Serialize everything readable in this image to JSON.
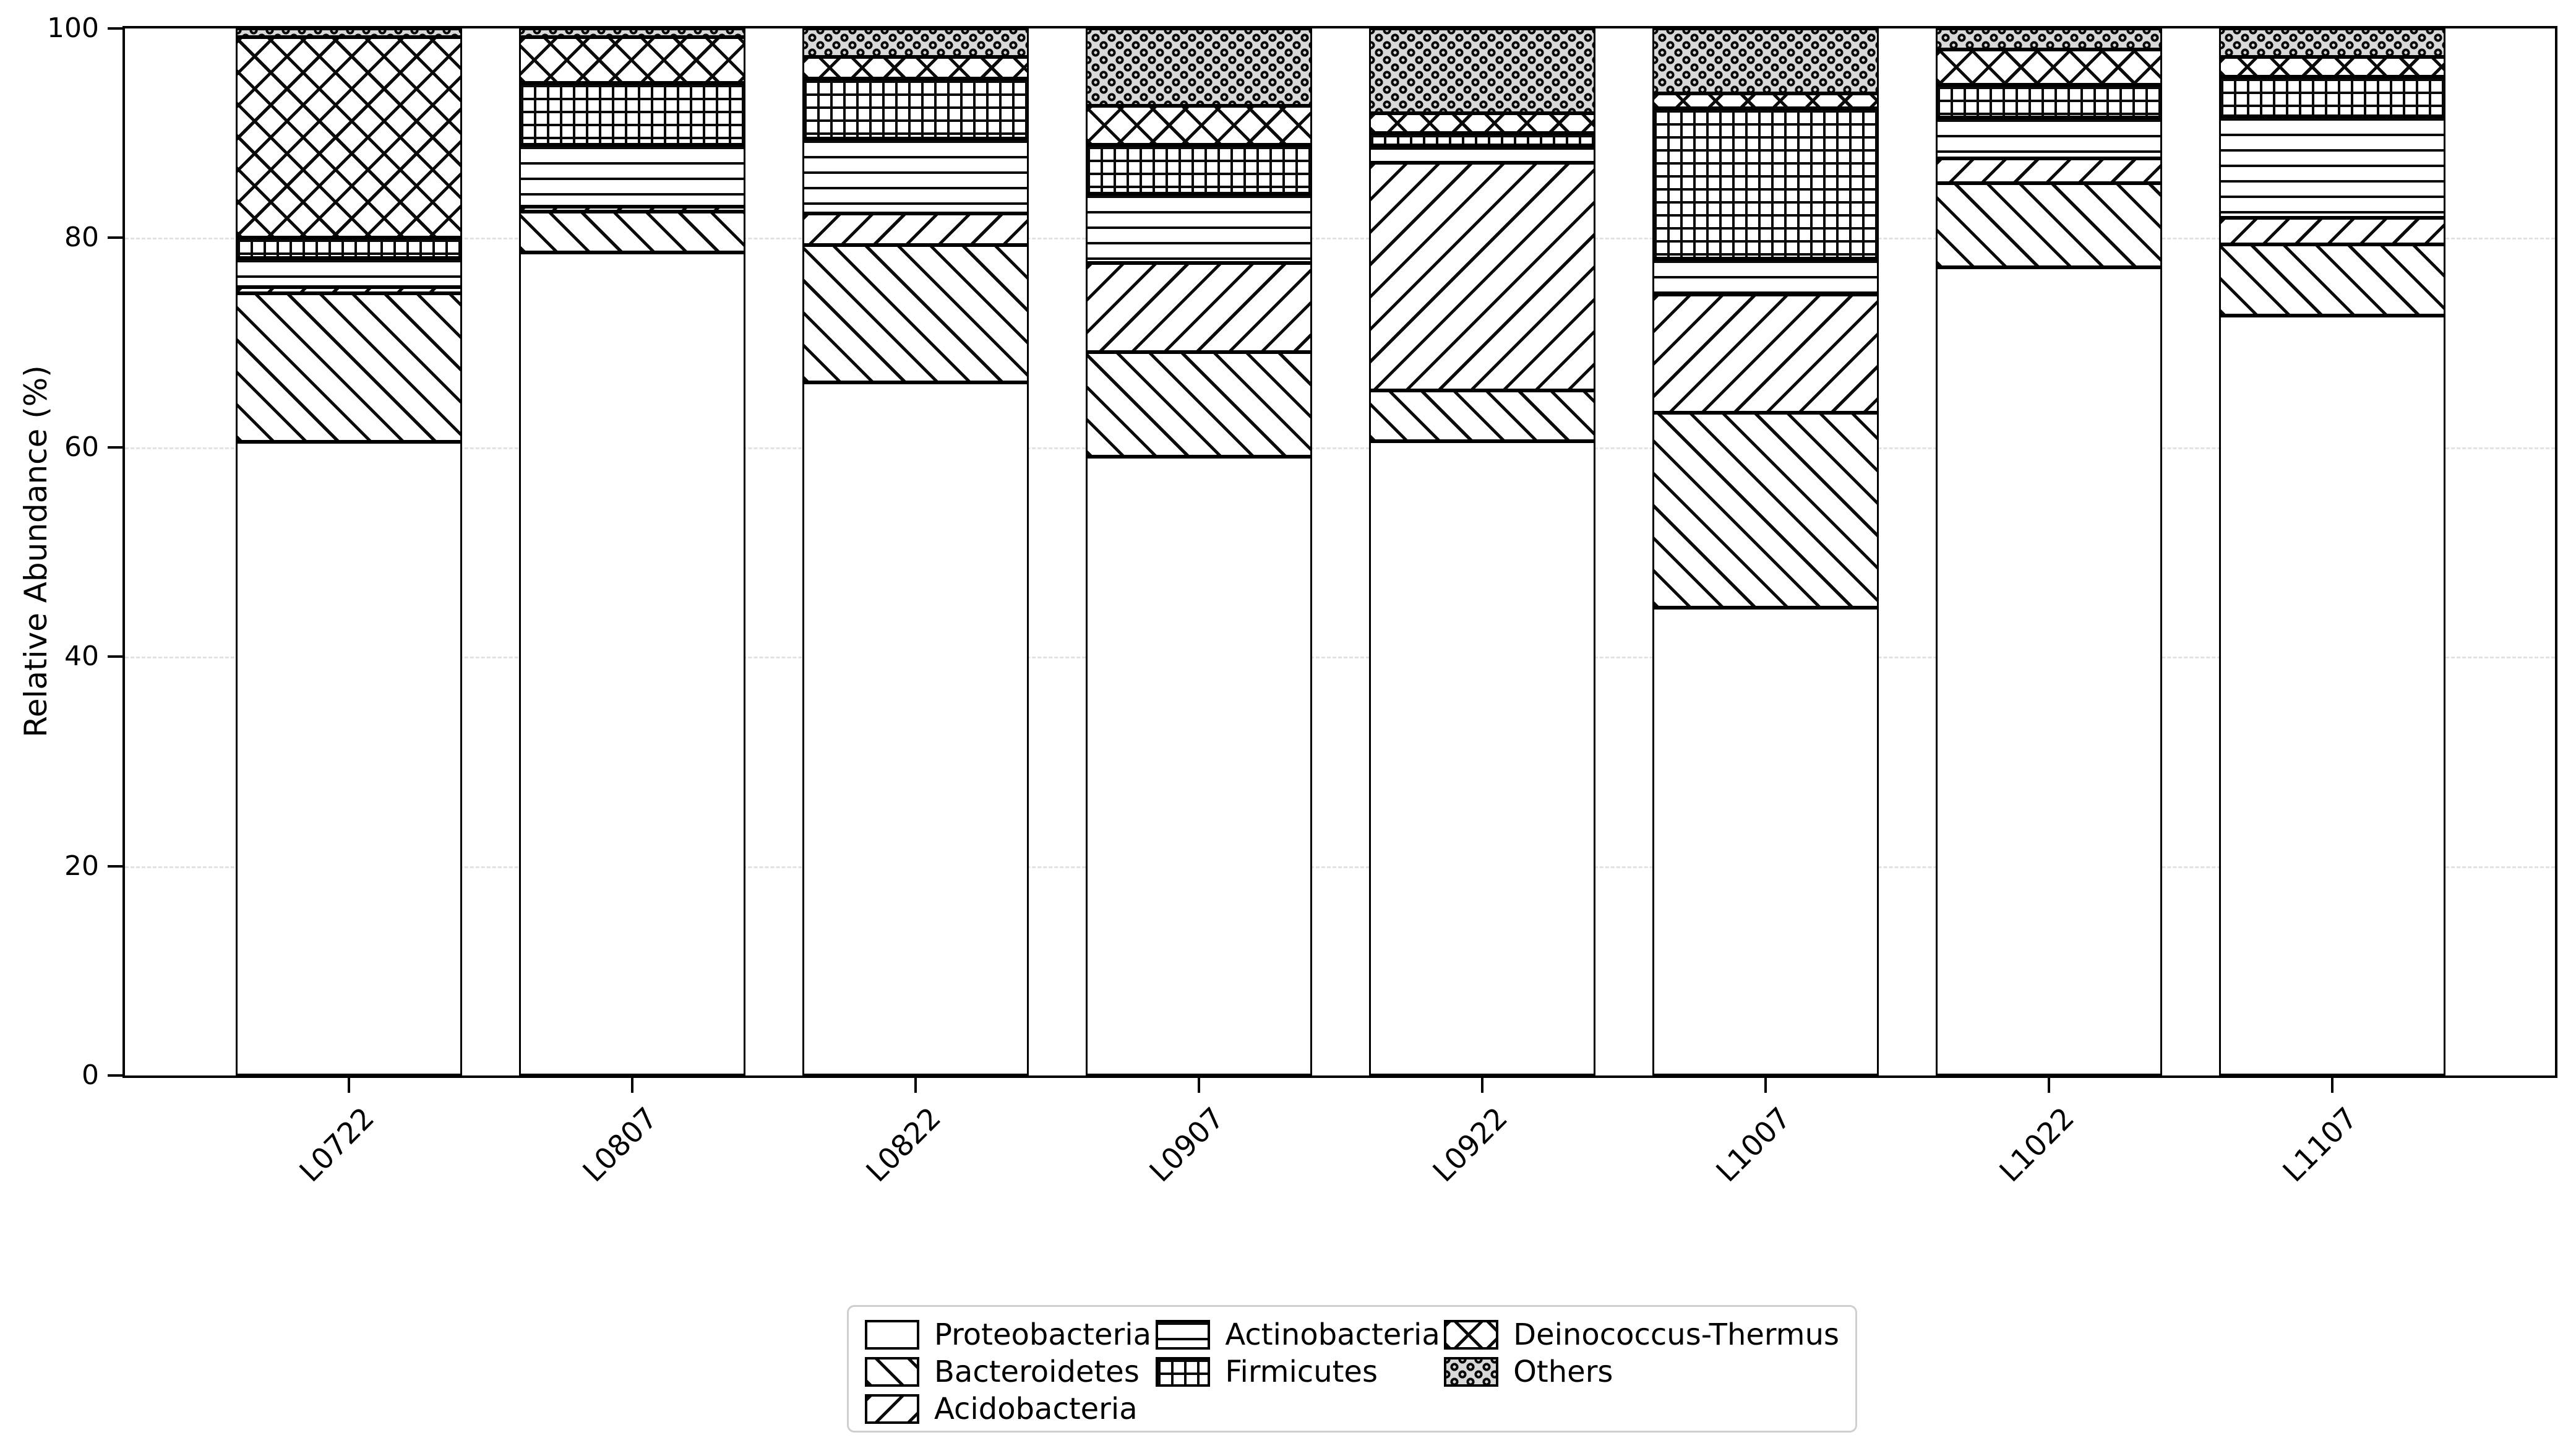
{
  "figure": {
    "background": "#ffffff"
  },
  "colors": {
    "bar_edge": "#000000",
    "hatch_line": "#0a0a0a",
    "others_face": "#d8d8d8",
    "gridline": "#e2e2e2",
    "legend_border": "#cfcfcf",
    "text": "#000000"
  },
  "chart_data": {
    "type": "bar",
    "stacked": true,
    "title": "",
    "xlabel": "",
    "ylabel": "Relative Abundance (%)",
    "ylim": [
      0,
      100
    ],
    "yticks": [
      0,
      20,
      40,
      60,
      80,
      100
    ],
    "grid": "horizontal-dashed",
    "legend_position": "bottom-center",
    "bar_fill": "white-with-black-hatches",
    "categories": [
      "L0722",
      "L0807",
      "L0822",
      "L0907",
      "L0922",
      "L1007",
      "L1022",
      "L1107"
    ],
    "series": [
      {
        "name": "Proteobacteria",
        "hatch": "none",
        "values": [
          60.5,
          78.6,
          66.2,
          59.1,
          60.6,
          44.7,
          77.2,
          72.6
        ]
      },
      {
        "name": "Bacteroidetes",
        "hatch": "backslash",
        "values": [
          14.2,
          3.9,
          13.1,
          10.0,
          4.8,
          18.6,
          8.0,
          6.8
        ]
      },
      {
        "name": "Acidobacteria",
        "hatch": "slash",
        "values": [
          0.6,
          0.5,
          3.0,
          8.5,
          21.8,
          11.3,
          2.4,
          2.5
        ]
      },
      {
        "name": "Actinobacteria",
        "hatch": "horizontal-lines",
        "values": [
          2.8,
          5.9,
          7.2,
          6.6,
          1.6,
          3.4,
          3.9,
          9.7
        ]
      },
      {
        "name": "Firmicutes",
        "hatch": "grid",
        "values": [
          1.9,
          5.9,
          5.7,
          4.7,
          1.2,
          14.4,
          3.1,
          3.8
        ]
      },
      {
        "name": "Deinococcus-Thermus",
        "hatch": "crosshatch",
        "values": [
          19.2,
          4.4,
          2.1,
          3.7,
          1.9,
          1.4,
          3.4,
          1.9
        ]
      },
      {
        "name": "Others",
        "hatch": "dots",
        "values": [
          0.8,
          0.8,
          2.7,
          7.4,
          8.1,
          6.2,
          2.0,
          2.7
        ]
      }
    ]
  }
}
